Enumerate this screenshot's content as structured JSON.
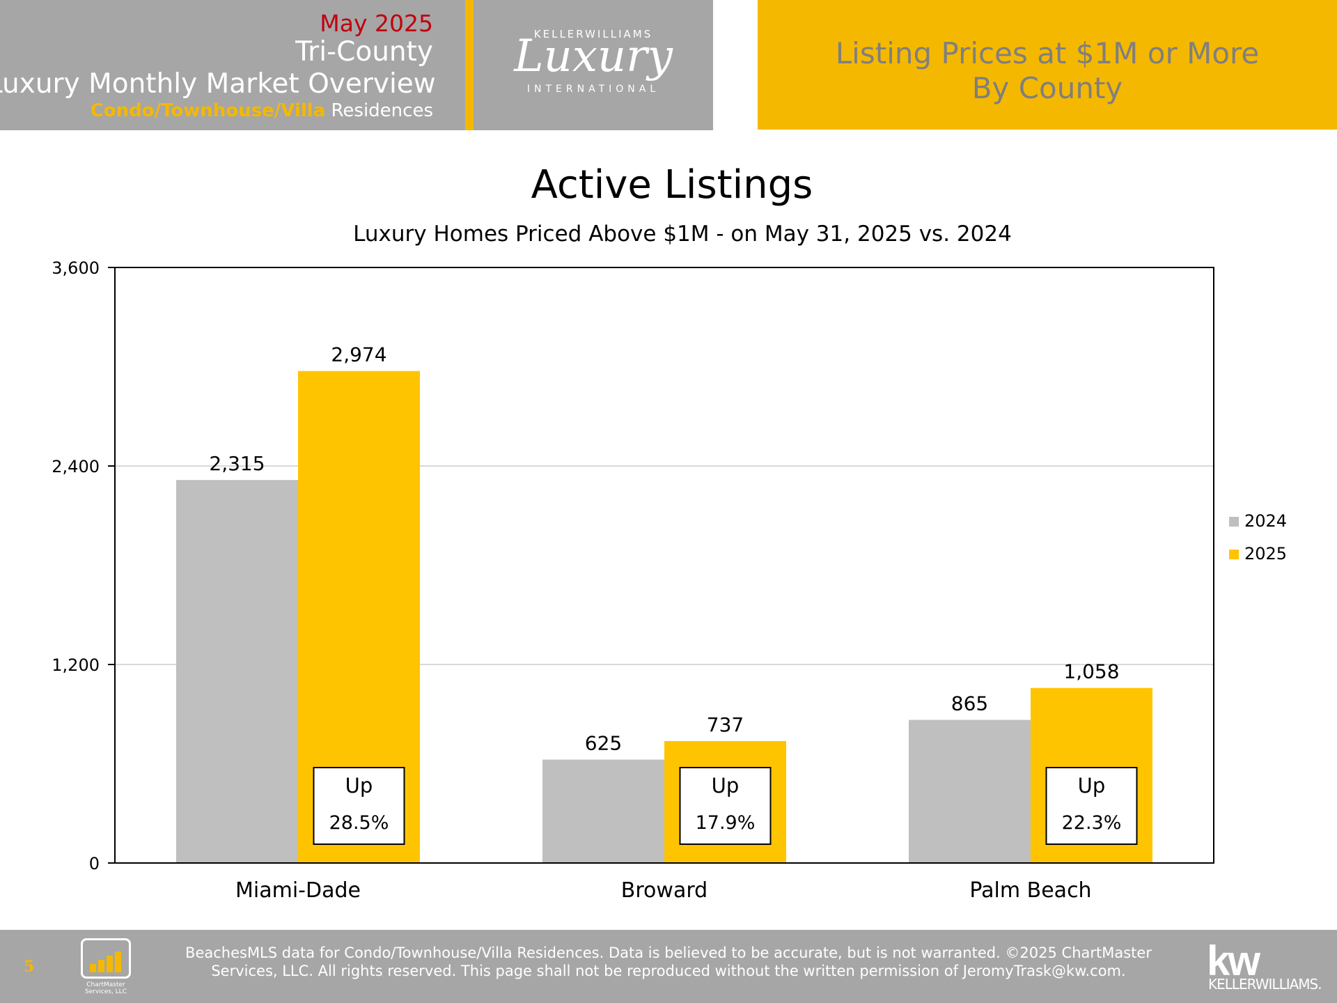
{
  "header": {
    "date": "May 2025",
    "region": "Tri-County",
    "report": "Luxury Monthly Market Overview",
    "segment_accent": "Condo/Townhouse/Villa",
    "segment_rest": " Residences",
    "logo_brand": "KELLERWILLIAMS",
    "logo_script": "Luxury",
    "logo_intl": "INTERNATIONAL",
    "right_line1": "Listing Prices at $1M or More",
    "right_line2": "By County"
  },
  "chart_data": {
    "type": "bar",
    "title": "Active Listings",
    "subtitle": "Luxury Homes Priced Above $1M - on May 31,  2025 vs. 2024",
    "categories": [
      "Miami-Dade",
      "Broward",
      "Palm Beach"
    ],
    "series": [
      {
        "name": "2024",
        "values": [
          2315,
          625,
          865
        ],
        "labels": [
          "2,315",
          "625",
          "865"
        ],
        "color": "#bfbfbf"
      },
      {
        "name": "2025",
        "values": [
          2974,
          737,
          1058
        ],
        "labels": [
          "2,974",
          "737",
          "1,058"
        ],
        "color": "#ffc400"
      }
    ],
    "ylim": [
      0,
      3600
    ],
    "yticks": [
      0,
      1200,
      2400,
      3600
    ],
    "ytick_labels": [
      "0",
      "1,200",
      "2,400",
      "3,600"
    ],
    "grid": true,
    "legend": "right",
    "annotations": [
      {
        "category": "Miami-Dade",
        "line1": "Up",
        "line2": "28.5%"
      },
      {
        "category": "Broward",
        "line1": "Up",
        "line2": "17.9%"
      },
      {
        "category": "Palm Beach",
        "line1": "Up",
        "line2": "22.3%"
      }
    ]
  },
  "footer": {
    "page_number": "5",
    "chartmaster_line1": "ChartMaster",
    "chartmaster_line2": "Services, LLC",
    "disclaimer_line1": "BeachesMLS data for Condo/Townhouse/Villa Residences.  Data is believed to be accurate, but is not warranted.   ©2025  ChartMaster",
    "disclaimer_line2": "Services, LLC.  All rights reserved. This page shall not be reproduced without the written permission of JeromyTrask@kw.com.",
    "kw_mark": "kw",
    "kw_name": "KELLERWILLIAMS."
  }
}
